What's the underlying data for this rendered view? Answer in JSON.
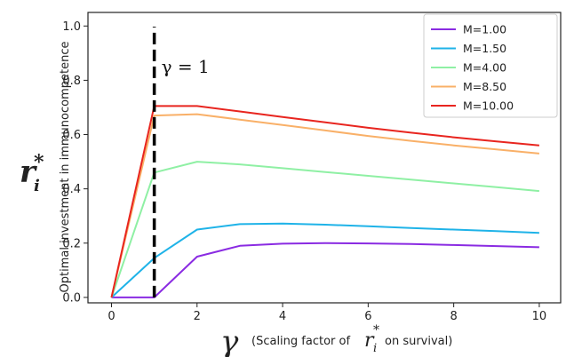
{
  "chart_data": {
    "type": "line",
    "ylabel_symbol": "r",
    "ylabel_sub": "i",
    "ylabel_sup": "*",
    "ylabel_text": "Optimal investment in immunocompetence",
    "xlabel_symbol": "γ",
    "xlabel_text_before": "(Scaling factor of",
    "xlabel_r": "r",
    "xlabel_sub": "i",
    "xlabel_sup": "*",
    "xlabel_text_after": "on survival)",
    "annotation": "γ = 1",
    "annotation_line_x": 1,
    "xlim": [
      -0.55,
      10.5
    ],
    "ylim": [
      -0.02,
      1.05
    ],
    "xticks": [
      0,
      2,
      4,
      6,
      8,
      10
    ],
    "yticks": [
      0.0,
      0.2,
      0.4,
      0.6,
      0.8,
      1.0
    ],
    "xtick_labels": [
      "0",
      "2",
      "4",
      "6",
      "8",
      "10"
    ],
    "ytick_labels": [
      "0.0",
      "0.2",
      "0.4",
      "0.6",
      "0.8",
      "1.0"
    ],
    "grid": false,
    "legend_position": "top-right",
    "series": [
      {
        "name": "M=1.00",
        "color": "#8a2be2",
        "x": [
          0,
          1,
          2,
          3,
          4,
          5,
          6,
          7,
          8,
          9,
          10
        ],
        "y": [
          0,
          0,
          0.15,
          0.19,
          0.198,
          0.2,
          0.199,
          0.197,
          0.193,
          0.189,
          0.185
        ]
      },
      {
        "name": "M=1.50",
        "color": "#1fb3e8",
        "x": [
          0,
          1,
          2,
          3,
          4,
          5,
          6,
          7,
          8,
          9,
          10
        ],
        "y": [
          0,
          0.145,
          0.25,
          0.27,
          0.272,
          0.268,
          0.262,
          0.256,
          0.25,
          0.244,
          0.238
        ]
      },
      {
        "name": "M=4.00",
        "color": "#8ff0a4",
        "x": [
          0,
          1,
          2,
          3,
          4,
          5,
          6,
          7,
          8,
          9,
          10
        ],
        "y": [
          0,
          0.46,
          0.5,
          0.49,
          0.476,
          0.462,
          0.448,
          0.434,
          0.42,
          0.406,
          0.392
        ]
      },
      {
        "name": "M=8.50",
        "color": "#f9b068",
        "x": [
          0,
          1,
          2,
          3,
          4,
          5,
          6,
          7,
          8,
          9,
          10
        ],
        "y": [
          0,
          0.67,
          0.675,
          0.655,
          0.635,
          0.615,
          0.595,
          0.577,
          0.56,
          0.545,
          0.53
        ]
      },
      {
        "name": "M=10.00",
        "color": "#e8251f",
        "x": [
          0,
          1,
          2,
          3,
          4,
          5,
          6,
          7,
          8,
          9,
          10
        ],
        "y": [
          0,
          0.705,
          0.705,
          0.685,
          0.665,
          0.645,
          0.625,
          0.607,
          0.59,
          0.575,
          0.56
        ]
      }
    ]
  }
}
